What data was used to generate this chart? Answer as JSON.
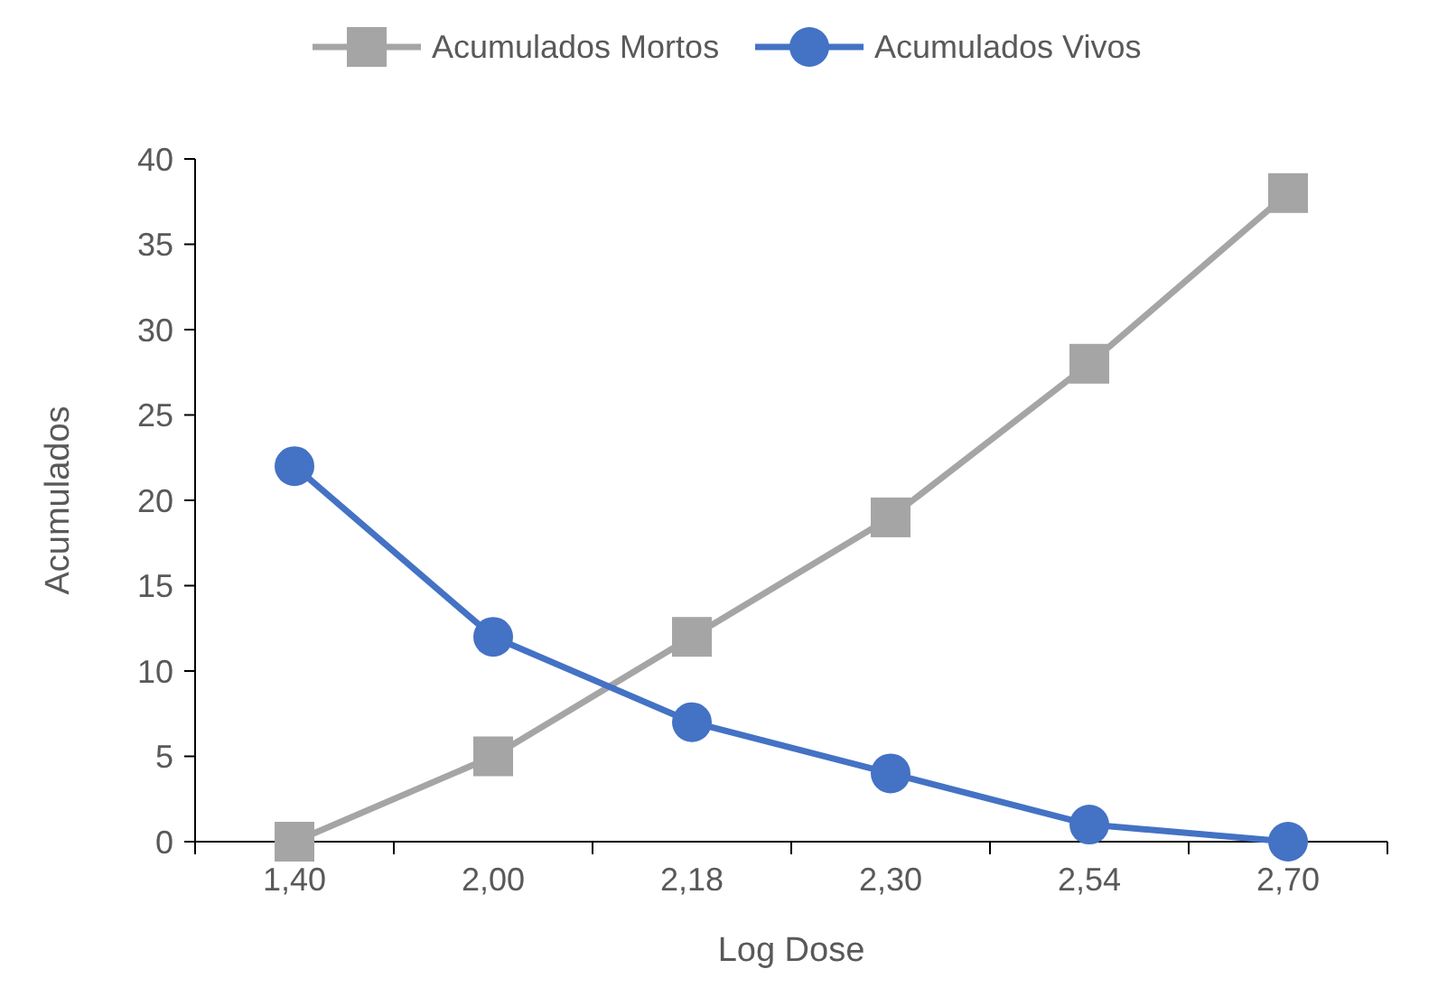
{
  "chart_data": {
    "type": "line",
    "xlabel": "Log Dose",
    "ylabel": "Acumulados",
    "categories": [
      "1,40",
      "2,00",
      "2,18",
      "2,30",
      "2,54",
      "2,70"
    ],
    "series": [
      {
        "name": "Acumulados Mortos",
        "color": "#a5a5a5",
        "marker": "square",
        "values": [
          0,
          5,
          12,
          19,
          28,
          38
        ]
      },
      {
        "name": "Acumulados Vivos",
        "color": "#4472c4",
        "marker": "circle",
        "values": [
          22,
          12,
          7,
          4,
          1,
          0
        ]
      }
    ],
    "ylim": [
      0,
      40
    ],
    "yticks": [
      0,
      5,
      10,
      15,
      20,
      25,
      30,
      35,
      40
    ],
    "grid": false,
    "legend": "top",
    "line_style": "solid"
  }
}
